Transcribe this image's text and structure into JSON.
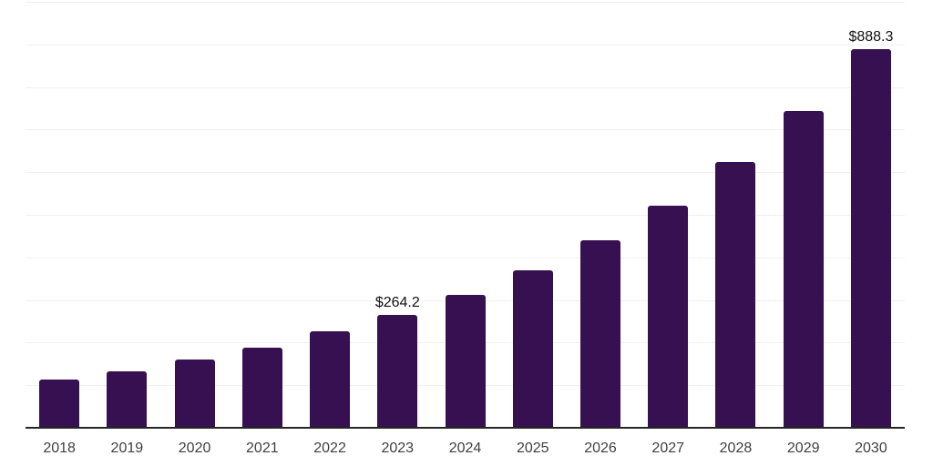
{
  "chart_data": {
    "type": "bar",
    "title": "",
    "xlabel": "",
    "ylabel": "",
    "categories": [
      "2018",
      "2019",
      "2020",
      "2021",
      "2022",
      "2023",
      "2024",
      "2025",
      "2026",
      "2027",
      "2028",
      "2029",
      "2030"
    ],
    "values": [
      113.2,
      132.5,
      160.3,
      188.0,
      226.5,
      264.2,
      312.0,
      369.7,
      440.2,
      521.4,
      623.0,
      743.6,
      888.3
    ],
    "data_labels": [
      "",
      "",
      "",
      "",
      "",
      "$264.2",
      "",
      "",
      "",
      "",
      "",
      "",
      "$888.3"
    ],
    "ylim": [
      0,
      1000
    ],
    "gridline_step": 100,
    "grid": true,
    "legend_visible": false,
    "y_axis_tick_labels_visible": false,
    "colors": {
      "bar": "#361050",
      "axis_line": "#262626",
      "gridline": "#f0f0f0",
      "tick_label": "#3f3f3f",
      "data_label": "#111111",
      "background": "#ffffff"
    }
  }
}
